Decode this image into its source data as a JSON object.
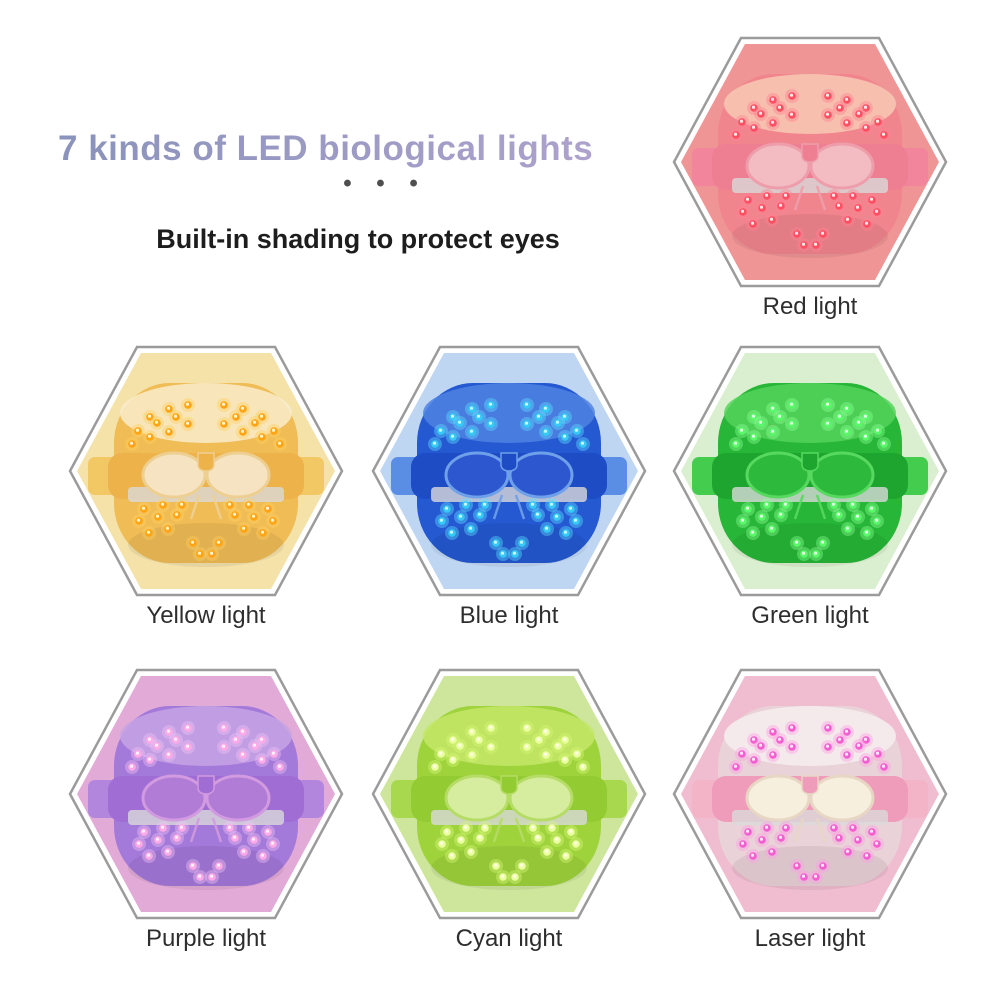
{
  "header": {
    "title": "7 kinds of LED biological lights",
    "title_gradient": [
      "#8a93bb",
      "#b4a5d0"
    ],
    "separator_dots": "• • •",
    "subtitle": "Built-in shading to protect eyes"
  },
  "colors": {
    "background": "#ffffff",
    "hex_border": "#9b9b9b",
    "hex_inner_gap": "#ffffff",
    "label_text": "#2e2e2e",
    "subtitle_text": "#1d1d1d",
    "dots_text": "#4f4f4f",
    "silver_strip": "#d9d9d9"
  },
  "lights": [
    {
      "id": "red",
      "label": "Red light",
      "hex_fill": "#f09595",
      "body_top": "#f8c9b4",
      "body_main": "#f1858e",
      "band": "#ee7f92",
      "lens_fill": "#f3bcc2",
      "lens_rim": "#ee9dab",
      "strap": "#f2849c",
      "led": "#ff4f63",
      "led_glow": "#ff8090",
      "led_core": "#ffe8ea"
    },
    {
      "id": "yellow",
      "label": "Yellow light",
      "hex_fill": "#f4e2a9",
      "body_top": "#f9eccb",
      "body_main": "#f0bc55",
      "band": "#eeb24a",
      "lens_fill": "#f6e3c2",
      "lens_rim": "#eecf92",
      "strap": "#f2c864",
      "led": "#ffa414",
      "led_glow": "#ffcf5e",
      "led_core": "#fff6c8"
    },
    {
      "id": "blue",
      "label": "Blue light",
      "hex_fill": "#bfd6f3",
      "body_top": "#4f83e2",
      "body_main": "#2459d2",
      "band": "#1e4cc4",
      "lens_fill": "#2d57cf",
      "lens_rim": "#6fa0ea",
      "strap": "#5a8de4",
      "led": "#35c9f5",
      "led_glow": "#5fe2ff",
      "led_core": "#c8f6ff"
    },
    {
      "id": "green",
      "label": "Green light",
      "hex_fill": "#daefcf",
      "body_top": "#55d45c",
      "body_main": "#27b637",
      "band": "#1ea52f",
      "lens_fill": "#2cb93c",
      "lens_rim": "#57d95f",
      "strap": "#43cc4e",
      "led": "#58f868",
      "led_glow": "#8cff96",
      "led_core": "#e0ffe2"
    },
    {
      "id": "purple",
      "label": "Purple light",
      "hex_fill": "#e2aad6",
      "body_top": "#c7a3e4",
      "body_main": "#a379d9",
      "band": "#a06dd4",
      "lens_fill": "#b07cd6",
      "lens_rim": "#d29ae0",
      "strap": "#b386de",
      "led": "#ffaae8",
      "led_glow": "#f2c4f4",
      "led_core": "#fff0fb"
    },
    {
      "id": "cyan",
      "label": "Cyan light",
      "hex_fill": "#cde69b",
      "body_top": "#c3e668",
      "body_main": "#9ed33c",
      "band": "#93cb32",
      "lens_fill": "#d6eda0",
      "lens_rim": "#b5dc64",
      "strap": "#a8d84e",
      "led": "#eaffa0",
      "led_glow": "#d6f878",
      "led_core": "#ffffe4"
    },
    {
      "id": "laser",
      "label": "Laser light",
      "hex_fill": "#efbdcf",
      "body_top": "#f6eef0",
      "body_main": "#e9d2d8",
      "band": "#ef9cba",
      "lens_fill": "#f6efdd",
      "lens_rim": "#e8d6c4",
      "strap": "#f4b4c8",
      "led": "#f25fd0",
      "led_glow": "#ff9ce4",
      "led_core": "#ffe6f8"
    }
  ]
}
